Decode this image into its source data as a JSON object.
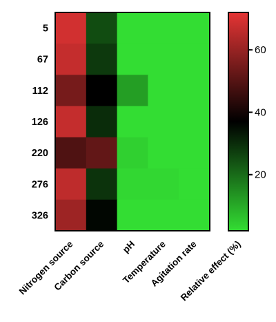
{
  "chart_data": {
    "type": "heatmap",
    "rows": [
      "5",
      "67",
      "112",
      "126",
      "220",
      "276",
      "326"
    ],
    "columns": [
      "Nitrogen source",
      "Carbon source",
      "pH",
      "Temperature",
      "Agitation rate"
    ],
    "values": [
      [
        69,
        25,
        2,
        2,
        2
      ],
      [
        67,
        28,
        2,
        2,
        2
      ],
      [
        55,
        37,
        12,
        2,
        2
      ],
      [
        67,
        30,
        2,
        2,
        2
      ],
      [
        49,
        52,
        4,
        2,
        2
      ],
      [
        66,
        29,
        3,
        3,
        2
      ],
      [
        61,
        36,
        2,
        2,
        2
      ]
    ],
    "colorbar": {
      "title": "Relative effect (%)",
      "range": [
        2,
        72
      ],
      "ticks": [
        20,
        40,
        60
      ],
      "colors": {
        "low": "#33dd33",
        "mid": "#000000",
        "high": "#e53535"
      }
    }
  }
}
